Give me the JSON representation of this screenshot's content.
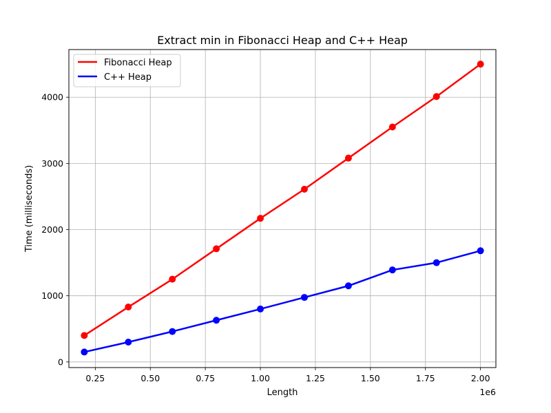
{
  "chart_data": {
    "type": "line",
    "title": "Extract min in Fibonacci Heap and C++ Heap",
    "xlabel": "Length",
    "ylabel": "Time (milliseconds)",
    "x_offset_label": "1e6",
    "x": [
      200000,
      400000,
      600000,
      800000,
      1000000,
      1200000,
      1400000,
      1600000,
      1800000,
      2000000
    ],
    "xlim": [
      130000,
      2070000
    ],
    "ylim": [
      -85,
      4720
    ],
    "x_ticks": [
      250000,
      500000,
      750000,
      1000000,
      1250000,
      1500000,
      1750000,
      2000000
    ],
    "x_tick_labels": [
      "0.25",
      "0.50",
      "0.75",
      "1.00",
      "1.25",
      "1.50",
      "1.75",
      "2.00"
    ],
    "y_ticks": [
      0,
      1000,
      2000,
      3000,
      4000
    ],
    "y_tick_labels": [
      "0",
      "1000",
      "2000",
      "3000",
      "4000"
    ],
    "grid": true,
    "legend_position": "top-left",
    "series": [
      {
        "name": "Fibonacci Heap",
        "color": "#ff0000",
        "values": [
          400,
          830,
          1250,
          1710,
          2170,
          2610,
          3080,
          3550,
          4010,
          4500
        ]
      },
      {
        "name": "C++ Heap",
        "color": "#0000ff",
        "values": [
          150,
          300,
          460,
          630,
          800,
          975,
          1150,
          1390,
          1500,
          1680
        ]
      }
    ]
  }
}
